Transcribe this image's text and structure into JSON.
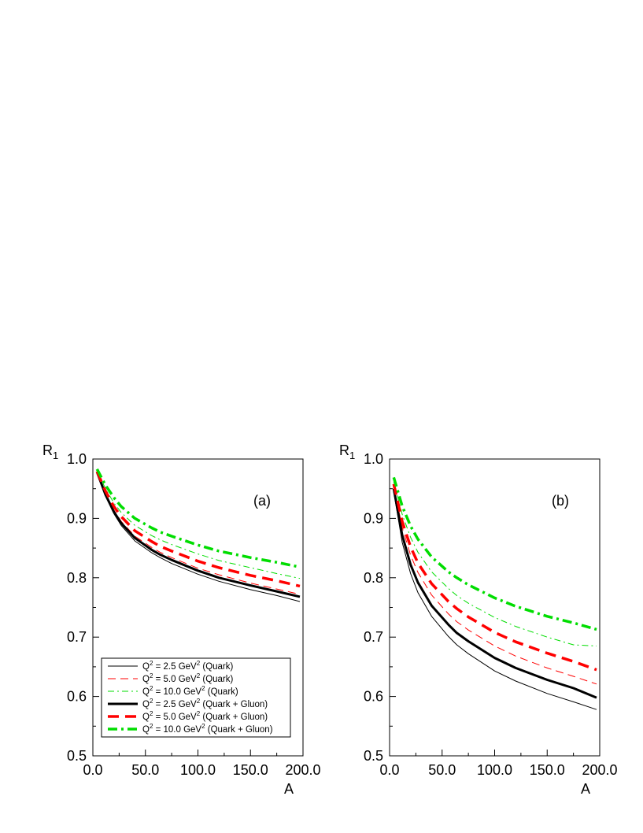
{
  "chart_data": [
    {
      "type": "line",
      "panel_label": "(a)",
      "xlabel": "A",
      "ylabel": "R",
      "ylabel_sub": "1",
      "xlim": [
        0,
        200
      ],
      "ylim": [
        0.5,
        1.0
      ],
      "xticks": [
        "0.0",
        "50.0",
        "100.0",
        "150.0",
        "200.0"
      ],
      "yticks": [
        "0.5",
        "0.6",
        "0.7",
        "0.8",
        "0.9",
        "1.0"
      ],
      "grid": false,
      "legend": {
        "placement": "bottom-left",
        "entries": [
          {
            "q": "Q",
            "sup": "2",
            "mid": " = 2.5 GeV",
            "sup2": "2",
            "tail": " (Quark)"
          },
          {
            "q": "Q",
            "sup": "2",
            "mid": " = 5.0 GeV",
            "sup2": "2",
            "tail": " (Quark)"
          },
          {
            "q": "Q",
            "sup": "2",
            "mid": " = 10.0 GeV",
            "sup2": "2",
            "tail": " (Quark)"
          },
          {
            "q": "Q",
            "sup": "2",
            "mid": " = 2.5 GeV",
            "sup2": "2",
            "tail": " (Quark + Gluon)"
          },
          {
            "q": "Q",
            "sup": "2",
            "mid": " = 5.0 GeV",
            "sup2": "2",
            "tail": " (Quark + Gluon)"
          },
          {
            "q": "Q",
            "sup": "2",
            "mid": " = 10.0 GeV",
            "sup2": "2",
            "tail": " (Quark + Gluon)"
          }
        ]
      },
      "x": [
        4,
        12,
        20,
        27,
        40,
        56,
        64,
        75,
        100,
        120,
        150,
        175,
        197
      ],
      "series": [
        {
          "color": "#000000",
          "style": "thin-solid",
          "values": [
            0.977,
            0.938,
            0.908,
            0.888,
            0.862,
            0.842,
            0.834,
            0.824,
            0.806,
            0.794,
            0.78,
            0.77,
            0.76
          ]
        },
        {
          "color": "#ff0000",
          "style": "thin-dash",
          "values": [
            0.978,
            0.941,
            0.914,
            0.895,
            0.87,
            0.851,
            0.843,
            0.834,
            0.816,
            0.805,
            0.791,
            0.781,
            0.772
          ]
        },
        {
          "color": "#00dd00",
          "style": "thin-dashdot",
          "values": [
            0.981,
            0.95,
            0.926,
            0.91,
            0.888,
            0.871,
            0.864,
            0.856,
            0.84,
            0.829,
            0.817,
            0.807,
            0.799
          ]
        },
        {
          "color": "#000000",
          "style": "thick-solid",
          "values": [
            0.978,
            0.94,
            0.911,
            0.892,
            0.867,
            0.847,
            0.839,
            0.83,
            0.812,
            0.8,
            0.787,
            0.777,
            0.768
          ]
        },
        {
          "color": "#ff0000",
          "style": "thick-dash",
          "values": [
            0.979,
            0.946,
            0.92,
            0.903,
            0.879,
            0.861,
            0.853,
            0.845,
            0.828,
            0.817,
            0.804,
            0.795,
            0.786
          ]
        },
        {
          "color": "#00dd00",
          "style": "thick-dashdot",
          "values": [
            0.983,
            0.956,
            0.935,
            0.92,
            0.9,
            0.884,
            0.877,
            0.87,
            0.855,
            0.845,
            0.834,
            0.826,
            0.818
          ]
        }
      ]
    },
    {
      "type": "line",
      "panel_label": "(b)",
      "xlabel": "A",
      "ylabel": "R",
      "ylabel_sub": "1",
      "xlim": [
        0,
        200
      ],
      "ylim": [
        0.5,
        1.0
      ],
      "xticks": [
        "0.0",
        "50.0",
        "100.0",
        "150.0",
        "200.0"
      ],
      "yticks": [
        "0.5",
        "0.6",
        "0.7",
        "0.8",
        "0.9",
        "1.0"
      ],
      "grid": false,
      "x": [
        4,
        12,
        20,
        27,
        40,
        56,
        64,
        75,
        100,
        120,
        150,
        175,
        197
      ],
      "series": [
        {
          "color": "#000000",
          "style": "thin-solid",
          "values": [
            0.945,
            0.86,
            0.807,
            0.775,
            0.735,
            0.701,
            0.687,
            0.672,
            0.643,
            0.626,
            0.605,
            0.591,
            0.578
          ]
        },
        {
          "color": "#ff0000",
          "style": "thin-dash",
          "values": [
            0.955,
            0.885,
            0.838,
            0.809,
            0.771,
            0.739,
            0.726,
            0.712,
            0.685,
            0.668,
            0.648,
            0.634,
            0.621
          ]
        },
        {
          "color": "#00dd00",
          "style": "thin-dashdot",
          "values": [
            0.962,
            0.907,
            0.868,
            0.843,
            0.81,
            0.782,
            0.77,
            0.757,
            0.733,
            0.718,
            0.7,
            0.687,
            0.685
          ]
        },
        {
          "color": "#000000",
          "style": "thick-solid",
          "values": [
            0.95,
            0.872,
            0.822,
            0.792,
            0.753,
            0.721,
            0.707,
            0.693,
            0.665,
            0.648,
            0.628,
            0.614,
            0.598
          ]
        },
        {
          "color": "#ff0000",
          "style": "thick-dash",
          "values": [
            0.958,
            0.895,
            0.852,
            0.825,
            0.79,
            0.76,
            0.748,
            0.734,
            0.708,
            0.692,
            0.673,
            0.659,
            0.645
          ]
        },
        {
          "color": "#00dd00",
          "style": "thick-dashdot",
          "values": [
            0.969,
            0.921,
            0.887,
            0.865,
            0.835,
            0.81,
            0.8,
            0.788,
            0.766,
            0.752,
            0.735,
            0.724,
            0.713
          ]
        }
      ]
    }
  ]
}
